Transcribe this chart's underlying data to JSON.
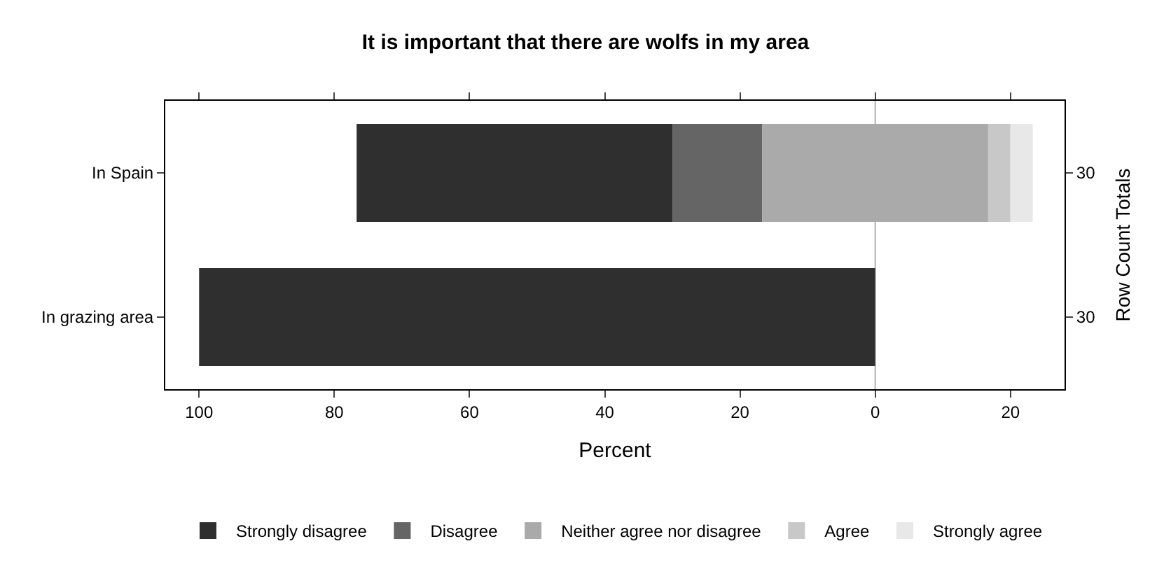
{
  "chart_data": {
    "type": "bar",
    "orientation": "horizontal",
    "title": "It is important that there are wolfs in my area",
    "xlabel": "Percent",
    "y2label": "Row Count Totals",
    "categories": [
      "In Spain",
      "In grazing area"
    ],
    "y2_categories": [
      "30",
      "30"
    ],
    "series": [
      {
        "name": "Strongly disagree",
        "color": "#2f2f2f",
        "base": [
          -76.7,
          -100
        ],
        "values": [
          46.7,
          100
        ]
      },
      {
        "name": "Disagree",
        "color": "#656565",
        "base": [
          -30,
          null
        ],
        "values": [
          13.3,
          null
        ]
      },
      {
        "name": "Neither agree nor disagree",
        "color": "#aaaaaa",
        "base": [
          -16.7,
          null
        ],
        "values": [
          33.4,
          null
        ]
      },
      {
        "name": "Agree",
        "color": "#c8c8c8",
        "base": [
          16.7,
          null
        ],
        "values": [
          3.3,
          null
        ]
      },
      {
        "name": "Strongly agree",
        "color": "#e8e8e8",
        "base": [
          20,
          null
        ],
        "values": [
          3.3,
          null
        ]
      }
    ],
    "xlim": [
      -105,
      28
    ],
    "xticks": [
      {
        "value": -100,
        "label": "100"
      },
      {
        "value": -80,
        "label": "80"
      },
      {
        "value": -60,
        "label": "60"
      },
      {
        "value": -40,
        "label": "40"
      },
      {
        "value": -20,
        "label": "20"
      },
      0,
      20
    ],
    "ref_lines": [
      {
        "axis": "x",
        "value": 0,
        "color": "#b0b0b0"
      }
    ],
    "grid": false,
    "legend": "bottom"
  }
}
